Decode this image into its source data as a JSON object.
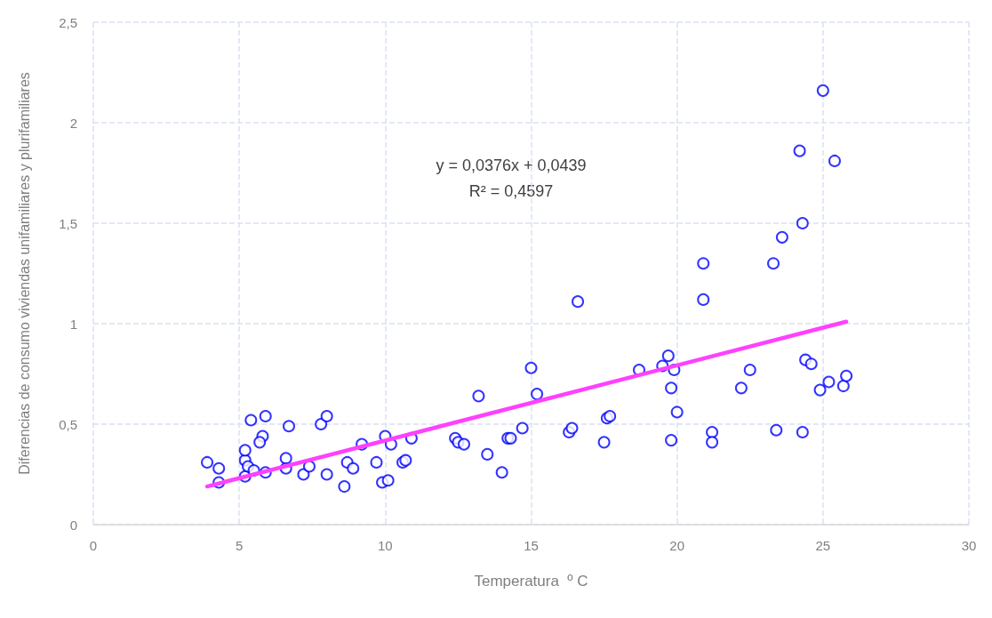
{
  "chart_data": {
    "type": "scatter",
    "xlabel": "Temperatura  º C",
    "ylabel": "Diferencias de consumo viviendas unifamiliares y plurifamiliares",
    "xlim": [
      0,
      30
    ],
    "xticks": [
      0,
      5,
      10,
      15,
      20,
      25,
      30
    ],
    "ylim": [
      0,
      2.5
    ],
    "yticks": [
      0,
      {
        "value": 0.5,
        "label": "0,5"
      },
      1,
      {
        "value": 1.5,
        "label": "1,5"
      },
      2,
      {
        "value": 2.5,
        "label": "2,5"
      }
    ],
    "grid": true,
    "marker": "circle",
    "annotations": [
      "y = 0,0376x + 0,0439",
      "R² = 0,4597"
    ],
    "series": [
      {
        "color": "#0000ff",
        "x": [
          3.9,
          4.3,
          4.3,
          5.2,
          5.2,
          5.4,
          5.2,
          5.3,
          5.5,
          5.8,
          5.7,
          5.9,
          5.9,
          6.6,
          6.6,
          6.7,
          7.2,
          7.4,
          7.8,
          8.0,
          8.0,
          8.6,
          8.7,
          8.9,
          9.2,
          9.7,
          9.9,
          10.1,
          10.0,
          10.2,
          10.6,
          10.7,
          10.9,
          12.4,
          12.5,
          12.7,
          13.2,
          13.5,
          14.0,
          14.2,
          14.3,
          14.7,
          15.0,
          15.2,
          16.3,
          16.4,
          16.6,
          17.5,
          17.6,
          17.7,
          18.7,
          19.5,
          19.7,
          19.9,
          19.8,
          19.8,
          20.0,
          20.9,
          20.9,
          21.2,
          21.2,
          22.2,
          22.5,
          23.3,
          23.4,
          23.6,
          24.2,
          24.3,
          24.4,
          24.3,
          24.6,
          24.9,
          25.0,
          25.2,
          25.4,
          25.7,
          25.8
        ],
        "values": [
          0.31,
          0.28,
          0.21,
          0.32,
          0.37,
          0.52,
          0.24,
          0.29,
          0.27,
          0.44,
          0.41,
          0.54,
          0.26,
          0.33,
          0.28,
          0.49,
          0.25,
          0.29,
          0.5,
          0.54,
          0.25,
          0.19,
          0.31,
          0.28,
          0.4,
          0.31,
          0.21,
          0.22,
          0.44,
          0.4,
          0.31,
          0.32,
          0.43,
          0.43,
          0.41,
          0.4,
          0.64,
          0.35,
          0.26,
          0.43,
          0.43,
          0.48,
          0.78,
          0.65,
          0.46,
          0.48,
          1.11,
          0.41,
          0.53,
          0.54,
          0.77,
          0.79,
          0.84,
          0.77,
          0.68,
          0.42,
          0.56,
          1.3,
          1.12,
          0.46,
          0.41,
          0.68,
          0.77,
          1.3,
          0.47,
          1.43,
          1.86,
          1.5,
          0.82,
          0.46,
          0.8,
          0.67,
          2.16,
          0.71,
          1.81,
          0.69,
          0.74
        ]
      },
      {
        "type": "line",
        "color": "#ff40ff",
        "marker": "none",
        "x": [
          3.9,
          25.8
        ],
        "values": [
          0.19,
          1.01
        ]
      }
    ]
  }
}
